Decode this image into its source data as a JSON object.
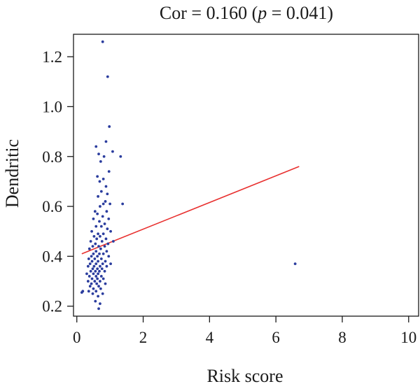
{
  "chart_data": {
    "type": "scatter",
    "title_prefix": "Cor = 0.160 (",
    "title_p": "p",
    "title_suffix": " = 0.041)",
    "xlabel": "Risk score",
    "ylabel": "Dendritic",
    "xlim": [
      -0.1,
      10.3
    ],
    "ylim": [
      0.16,
      1.29
    ],
    "xticks": [
      0,
      2,
      4,
      6,
      8,
      10
    ],
    "xtick_labels": [
      "0",
      "2",
      "4",
      "6",
      "8",
      "10"
    ],
    "yticks": [
      0.2,
      0.4,
      0.6,
      0.8,
      1.0,
      1.2
    ],
    "ytick_labels": [
      "0.2",
      "0.4",
      "0.6",
      "0.8",
      "1.0",
      "1.2"
    ],
    "grid": false,
    "point_color": "#2b3d9e",
    "line_color": "#e8302f",
    "regression_line": {
      "x": [
        0.15,
        6.7
      ],
      "y": [
        0.41,
        0.76
      ]
    },
    "points": [
      {
        "x": 0.78,
        "y": 1.26
      },
      {
        "x": 0.93,
        "y": 1.12
      },
      {
        "x": 0.98,
        "y": 0.92
      },
      {
        "x": 0.88,
        "y": 0.86
      },
      {
        "x": 0.58,
        "y": 0.84
      },
      {
        "x": 1.08,
        "y": 0.82
      },
      {
        "x": 0.66,
        "y": 0.81
      },
      {
        "x": 1.32,
        "y": 0.8
      },
      {
        "x": 0.82,
        "y": 0.8
      },
      {
        "x": 0.72,
        "y": 0.78
      },
      {
        "x": 0.97,
        "y": 0.74
      },
      {
        "x": 0.62,
        "y": 0.72
      },
      {
        "x": 0.8,
        "y": 0.71
      },
      {
        "x": 0.69,
        "y": 0.7
      },
      {
        "x": 0.88,
        "y": 0.68
      },
      {
        "x": 0.74,
        "y": 0.66
      },
      {
        "x": 0.92,
        "y": 0.65
      },
      {
        "x": 0.64,
        "y": 0.64
      },
      {
        "x": 0.86,
        "y": 0.62
      },
      {
        "x": 1.38,
        "y": 0.61
      },
      {
        "x": 0.8,
        "y": 0.61
      },
      {
        "x": 1.0,
        "y": 0.61
      },
      {
        "x": 0.7,
        "y": 0.6
      },
      {
        "x": 0.55,
        "y": 0.58
      },
      {
        "x": 0.9,
        "y": 0.58
      },
      {
        "x": 0.62,
        "y": 0.57
      },
      {
        "x": 0.78,
        "y": 0.56
      },
      {
        "x": 0.5,
        "y": 0.55
      },
      {
        "x": 0.96,
        "y": 0.55
      },
      {
        "x": 0.68,
        "y": 0.54
      },
      {
        "x": 0.84,
        "y": 0.53
      },
      {
        "x": 0.58,
        "y": 0.52
      },
      {
        "x": 0.74,
        "y": 0.52
      },
      {
        "x": 0.92,
        "y": 0.51
      },
      {
        "x": 1.02,
        "y": 0.5
      },
      {
        "x": 0.45,
        "y": 0.5
      },
      {
        "x": 0.64,
        "y": 0.49
      },
      {
        "x": 0.8,
        "y": 0.49
      },
      {
        "x": 0.52,
        "y": 0.48
      },
      {
        "x": 0.7,
        "y": 0.48
      },
      {
        "x": 0.88,
        "y": 0.47
      },
      {
        "x": 0.6,
        "y": 0.47
      },
      {
        "x": 1.1,
        "y": 0.46
      },
      {
        "x": 0.42,
        "y": 0.46
      },
      {
        "x": 0.76,
        "y": 0.46
      },
      {
        "x": 0.56,
        "y": 0.45
      },
      {
        "x": 0.94,
        "y": 0.45
      },
      {
        "x": 0.66,
        "y": 0.44
      },
      {
        "x": 0.48,
        "y": 0.44
      },
      {
        "x": 0.84,
        "y": 0.44
      },
      {
        "x": 0.72,
        "y": 0.43
      },
      {
        "x": 0.38,
        "y": 0.43
      },
      {
        "x": 0.58,
        "y": 0.42
      },
      {
        "x": 0.9,
        "y": 0.42
      },
      {
        "x": 0.5,
        "y": 0.41
      },
      {
        "x": 0.68,
        "y": 0.41
      },
      {
        "x": 0.8,
        "y": 0.41
      },
      {
        "x": 0.44,
        "y": 0.4
      },
      {
        "x": 0.62,
        "y": 0.4
      },
      {
        "x": 0.96,
        "y": 0.4
      },
      {
        "x": 0.36,
        "y": 0.39
      },
      {
        "x": 0.54,
        "y": 0.39
      },
      {
        "x": 0.74,
        "y": 0.39
      },
      {
        "x": 0.86,
        "y": 0.38
      },
      {
        "x": 0.46,
        "y": 0.38
      },
      {
        "x": 0.64,
        "y": 0.38
      },
      {
        "x": 1.02,
        "y": 0.37
      },
      {
        "x": 0.4,
        "y": 0.37
      },
      {
        "x": 0.58,
        "y": 0.37
      },
      {
        "x": 0.78,
        "y": 0.37
      },
      {
        "x": 6.58,
        "y": 0.37
      },
      {
        "x": 0.52,
        "y": 0.36
      },
      {
        "x": 0.7,
        "y": 0.36
      },
      {
        "x": 0.34,
        "y": 0.36
      },
      {
        "x": 0.9,
        "y": 0.36
      },
      {
        "x": 0.48,
        "y": 0.35
      },
      {
        "x": 0.62,
        "y": 0.35
      },
      {
        "x": 0.76,
        "y": 0.35
      },
      {
        "x": 0.42,
        "y": 0.34
      },
      {
        "x": 0.56,
        "y": 0.34
      },
      {
        "x": 0.68,
        "y": 0.34
      },
      {
        "x": 0.84,
        "y": 0.34
      },
      {
        "x": 0.3,
        "y": 0.33
      },
      {
        "x": 0.5,
        "y": 0.33
      },
      {
        "x": 0.64,
        "y": 0.33
      },
      {
        "x": 0.38,
        "y": 0.32
      },
      {
        "x": 0.58,
        "y": 0.32
      },
      {
        "x": 0.74,
        "y": 0.32
      },
      {
        "x": 0.46,
        "y": 0.31
      },
      {
        "x": 0.62,
        "y": 0.31
      },
      {
        "x": 0.8,
        "y": 0.31
      },
      {
        "x": 0.34,
        "y": 0.3
      },
      {
        "x": 0.54,
        "y": 0.3
      },
      {
        "x": 0.7,
        "y": 0.3
      },
      {
        "x": 0.44,
        "y": 0.29
      },
      {
        "x": 0.6,
        "y": 0.29
      },
      {
        "x": 0.86,
        "y": 0.29
      },
      {
        "x": 0.4,
        "y": 0.28
      },
      {
        "x": 0.66,
        "y": 0.28
      },
      {
        "x": 0.5,
        "y": 0.27
      },
      {
        "x": 0.72,
        "y": 0.27
      },
      {
        "x": 0.36,
        "y": 0.26
      },
      {
        "x": 0.58,
        "y": 0.26
      },
      {
        "x": 0.18,
        "y": 0.26
      },
      {
        "x": 0.15,
        "y": 0.255
      },
      {
        "x": 0.78,
        "y": 0.25
      },
      {
        "x": 0.48,
        "y": 0.25
      },
      {
        "x": 0.64,
        "y": 0.24
      },
      {
        "x": 0.56,
        "y": 0.22
      },
      {
        "x": 0.7,
        "y": 0.21
      },
      {
        "x": 0.66,
        "y": 0.19
      }
    ]
  }
}
